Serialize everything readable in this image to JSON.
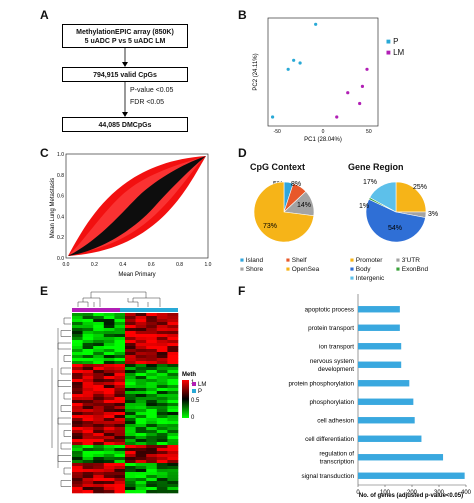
{
  "panels": {
    "A": "A",
    "B": "B",
    "C": "C",
    "D": "D",
    "E": "E",
    "F": "F"
  },
  "flow": {
    "box1_line1": "MethylationEPIC array (850K)",
    "box1_line2": "5 uADC P vs 5 uADC LM",
    "box2": "794,915 valid CpGs",
    "step1": "P-value <0.05",
    "step2": "FDR <0.05",
    "box3": "44,085 DMCpGs"
  },
  "pca": {
    "xlabel": "PC1 (28.04%)",
    "ylabel": "PC2 (24.11%)",
    "x_ticks": [
      "-50",
      "0",
      "50"
    ],
    "legend": [
      {
        "label": "P",
        "color": "#29a9d6"
      },
      {
        "label": "LM",
        "color": "#b11fb5"
      }
    ],
    "xlim": [
      -60,
      60
    ],
    "ylim": [
      -60,
      60
    ],
    "points_P": [
      [
        -8,
        53
      ],
      [
        -32,
        13
      ],
      [
        -25,
        10
      ],
      [
        -38,
        3
      ],
      [
        -55,
        -50
      ]
    ],
    "points_LM": [
      [
        48,
        3
      ],
      [
        27,
        -23
      ],
      [
        43,
        -16
      ],
      [
        40,
        -35
      ],
      [
        15,
        -50
      ]
    ]
  },
  "mean_plot": {
    "xlabel": "Mean Primary",
    "ylabel": "Mean Lung Metastasis",
    "ticks": [
      "0.0",
      "0.2",
      "0.4",
      "0.6",
      "0.8",
      "1.0"
    ]
  },
  "pies": {
    "cpg_title": "CpG Context",
    "gene_title": "Gene Region",
    "cpg": [
      {
        "label": "Island",
        "value": 5,
        "color": "#31a6dd"
      },
      {
        "label": "Shelf",
        "value": 8,
        "color": "#e8582a"
      },
      {
        "label": "Shore",
        "value": 14,
        "color": "#a3a3a3"
      },
      {
        "label": "OpenSea",
        "value": 73,
        "color": "#f6b418"
      }
    ],
    "cpg_labels": [
      "5%",
      "8%",
      "14%",
      "73%"
    ],
    "gene": [
      {
        "label": "Promoter",
        "value": 25,
        "color": "#f6b418"
      },
      {
        "label": "3'UTR",
        "value": 3,
        "color": "#a3a3a3"
      },
      {
        "label": "Body",
        "value": 54,
        "color": "#2f6fd6"
      },
      {
        "label": "ExonBnd",
        "value": 1,
        "color": "#3aa23a"
      },
      {
        "label": "Intergenic",
        "value": 17,
        "color": "#5dc0ea"
      }
    ],
    "gene_labels": [
      "25%",
      "3%",
      "54%",
      "1%",
      "17%"
    ],
    "legend_cpg": [
      {
        "label": "Island",
        "color": "#31a6dd"
      },
      {
        "label": "Shelf",
        "color": "#e8582a"
      },
      {
        "label": "Shore",
        "color": "#a3a3a3"
      },
      {
        "label": "OpenSea",
        "color": "#f6b418"
      }
    ],
    "legend_gene": [
      {
        "label": "Promoter",
        "color": "#f6b418"
      },
      {
        "label": "3'UTR",
        "color": "#a3a3a3"
      },
      {
        "label": "Body",
        "color": "#2f6fd6"
      },
      {
        "label": "ExonBnd",
        "color": "#3aa23a"
      },
      {
        "label": "Intergenic",
        "color": "#5dc0ea"
      }
    ]
  },
  "heatmap": {
    "legend_title": "Meth",
    "scale": [
      "1",
      "0.5",
      "0"
    ],
    "groups": [
      {
        "label": "LM",
        "color": "#b11fb5"
      },
      {
        "label": "P",
        "color": "#29a9d6"
      }
    ]
  },
  "chart_data": {
    "type": "bar",
    "orientation": "horizontal",
    "categories": [
      "apoptotic process",
      "protein transport",
      "ion transport",
      "nervous system development",
      "protein phosphorylation",
      "phosphorylation",
      "cell adhesion",
      "cell differentiation",
      "regulation of transcription",
      "signal transduction"
    ],
    "values": [
      155,
      155,
      160,
      160,
      190,
      205,
      210,
      235,
      315,
      395
    ],
    "xlabel": "No. of genes (adjusted p-value<0.05)",
    "xlim": [
      0,
      400
    ],
    "x_ticks": [
      "0",
      "100",
      "200",
      "300",
      "400"
    ],
    "color": "#39a8df"
  }
}
